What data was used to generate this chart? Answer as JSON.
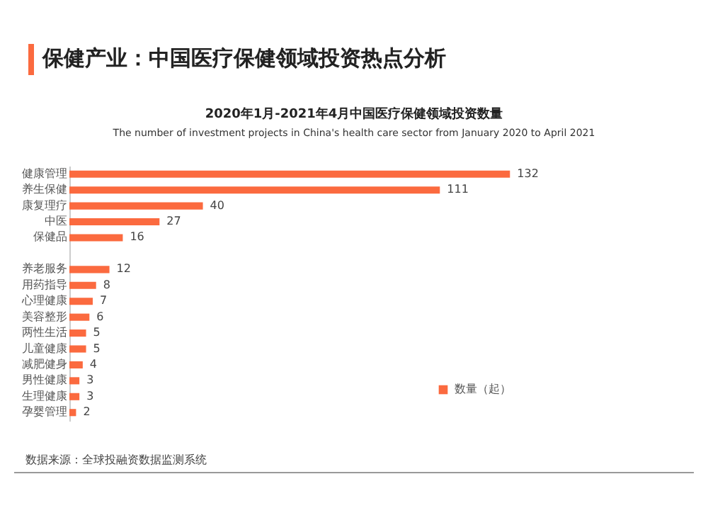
{
  "chart_data": {
    "type": "bar",
    "orientation": "horizontal",
    "title": "保健产业：中国医疗保健领域投资热点分析",
    "subtitle": "2020年1月-2021年4月中国医疗保健领域投资数量",
    "categories": [
      "健康管理",
      "养生保健",
      "康复理疗",
      "中医",
      "保健品",
      null,
      "养老服务",
      "用药指导",
      "心理健康",
      "美容整形",
      "两性生活",
      "儿童健康",
      "减肥健身",
      "男性健康",
      "生理健康",
      "孕婴管理"
    ],
    "series": [
      {
        "name": "数量（起）",
        "color": "#fb6a3f",
        "values": [
          132,
          111,
          40,
          27,
          16,
          null,
          12,
          8,
          7,
          6,
          5,
          5,
          4,
          3,
          3,
          2
        ]
      }
    ],
    "data_labels": true,
    "legend": "bottom right",
    "tick_labels": "y",
    "annotations": [
      "The number of investment projects in China's health care sector from January 2020 to April 2021",
      "数据来源：全球投融资数据监测系统"
    ]
  }
}
